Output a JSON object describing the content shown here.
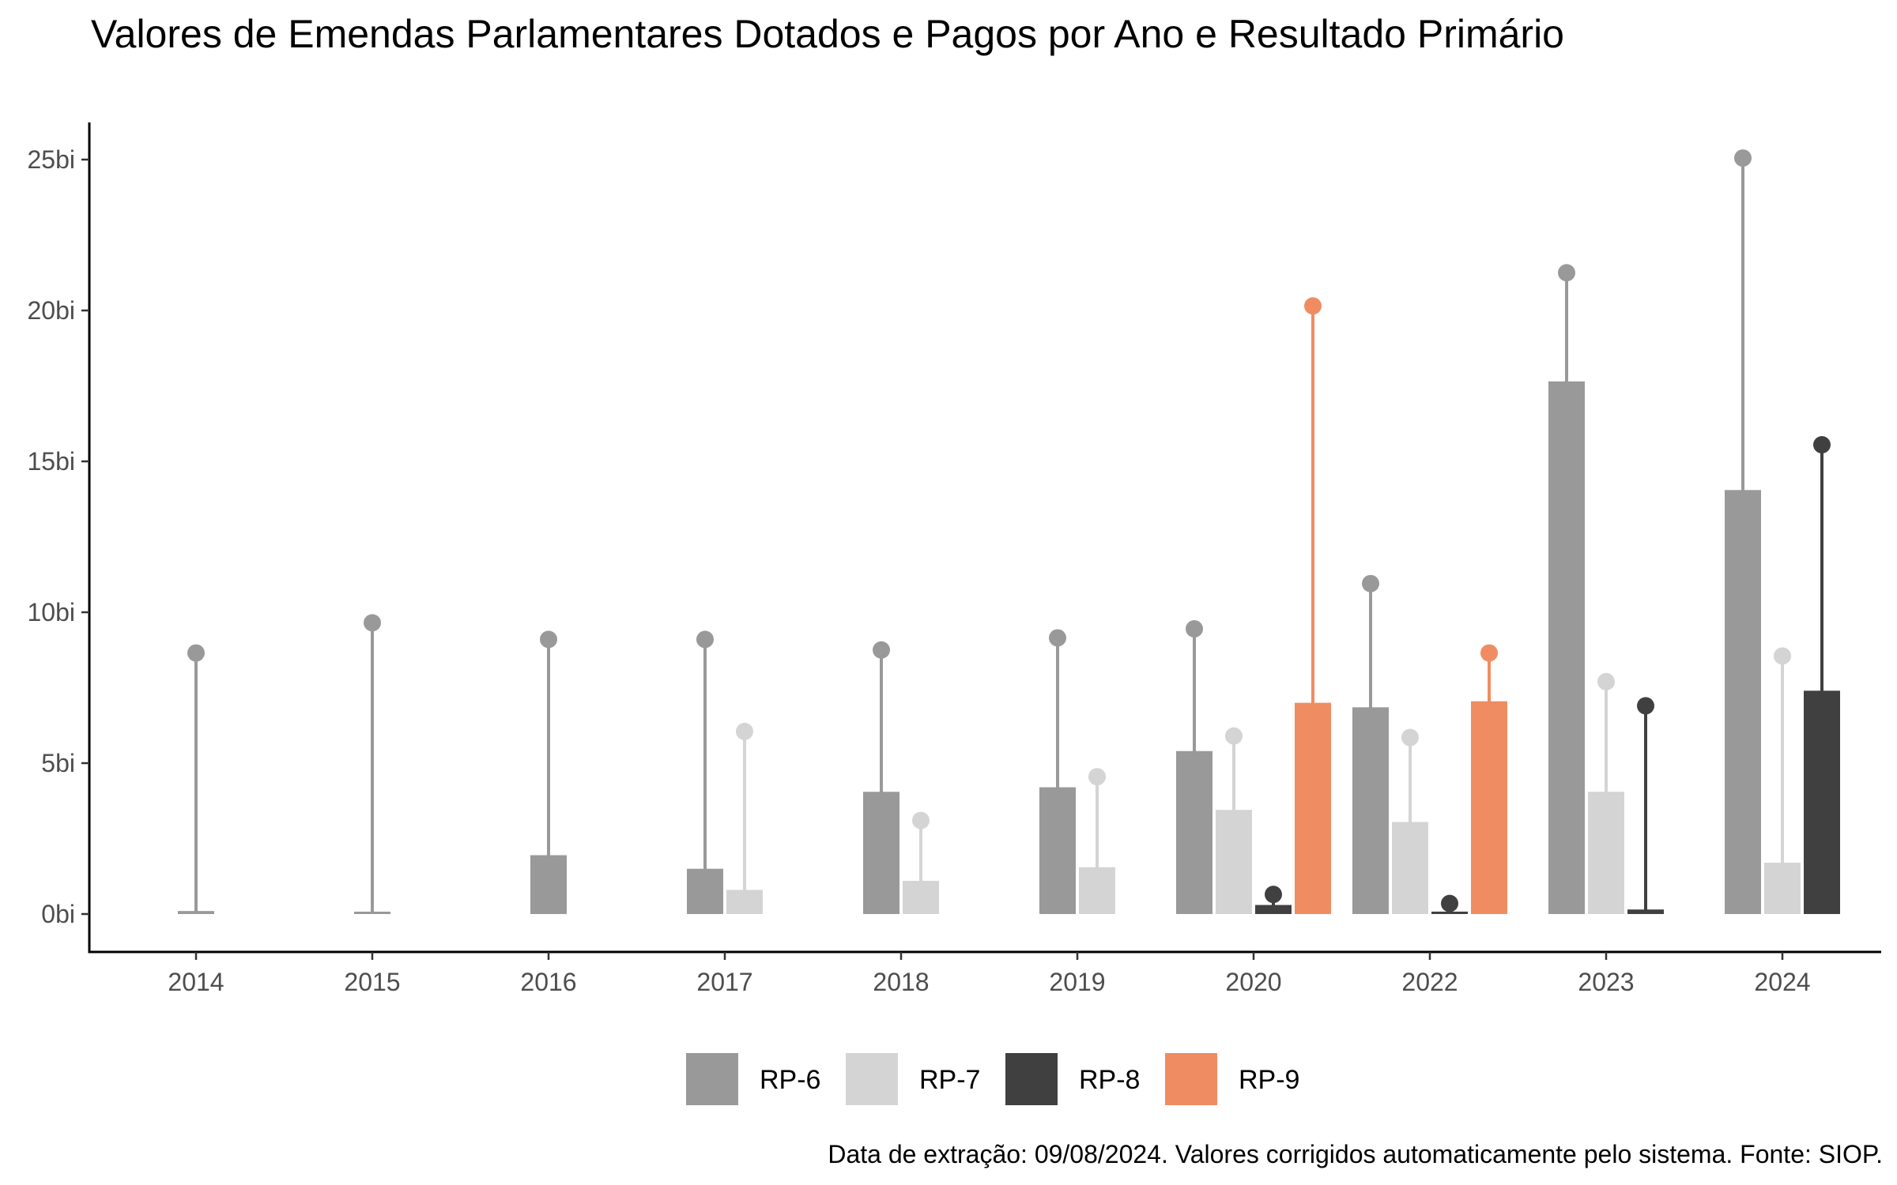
{
  "chart_data": {
    "type": "bar",
    "title": "Valores de Emendas Parlamentares Dotados e Pagos por Ano e Resultado Primário",
    "caption": "Data de extração: 09/08/2024. Valores corrigidos automaticamente pelo sistema. Fonte: SIOP.",
    "xlabel": "",
    "ylabel": "",
    "ylim": [
      0,
      25
    ],
    "yticks": [
      0,
      5,
      10,
      15,
      20,
      25
    ],
    "ytick_labels": [
      "0bi",
      "5bi",
      "10bi",
      "15bi",
      "20bi",
      "25bi"
    ],
    "categories": [
      "2014",
      "2015",
      "2016",
      "2017",
      "2018",
      "2019",
      "2020",
      "2022",
      "2023",
      "2024"
    ],
    "legend_position": "bottom",
    "grid": false,
    "encoding": "bars show paid values (pagos); lollipop points show allocated values (dotados)",
    "series": [
      {
        "name": "RP-6",
        "color": "#999999",
        "paid": [
          0.1,
          0.0,
          1.95,
          1.5,
          4.05,
          4.2,
          5.4,
          6.85,
          17.65,
          14.05
        ],
        "allocated": [
          8.65,
          9.65,
          9.1,
          9.1,
          8.75,
          9.15,
          9.45,
          10.95,
          21.25,
          25.05
        ]
      },
      {
        "name": "RP-7",
        "color": "#d4d4d4",
        "paid": [
          null,
          null,
          null,
          0.8,
          1.1,
          1.55,
          3.45,
          3.05,
          4.05,
          1.7
        ],
        "allocated": [
          null,
          null,
          null,
          6.05,
          3.1,
          4.55,
          5.9,
          5.85,
          7.7,
          8.55
        ]
      },
      {
        "name": "RP-8",
        "color": "#404040",
        "paid": [
          null,
          null,
          null,
          null,
          null,
          null,
          0.3,
          0.08,
          0.15,
          7.4
        ],
        "allocated": [
          null,
          null,
          null,
          null,
          null,
          null,
          0.65,
          0.35,
          6.9,
          15.55
        ]
      },
      {
        "name": "RP-9",
        "color": "#f08c62",
        "paid": [
          null,
          null,
          null,
          null,
          null,
          null,
          7.0,
          7.05,
          null,
          null
        ],
        "allocated": [
          null,
          null,
          null,
          null,
          null,
          null,
          20.15,
          8.65,
          null,
          null
        ]
      }
    ]
  }
}
